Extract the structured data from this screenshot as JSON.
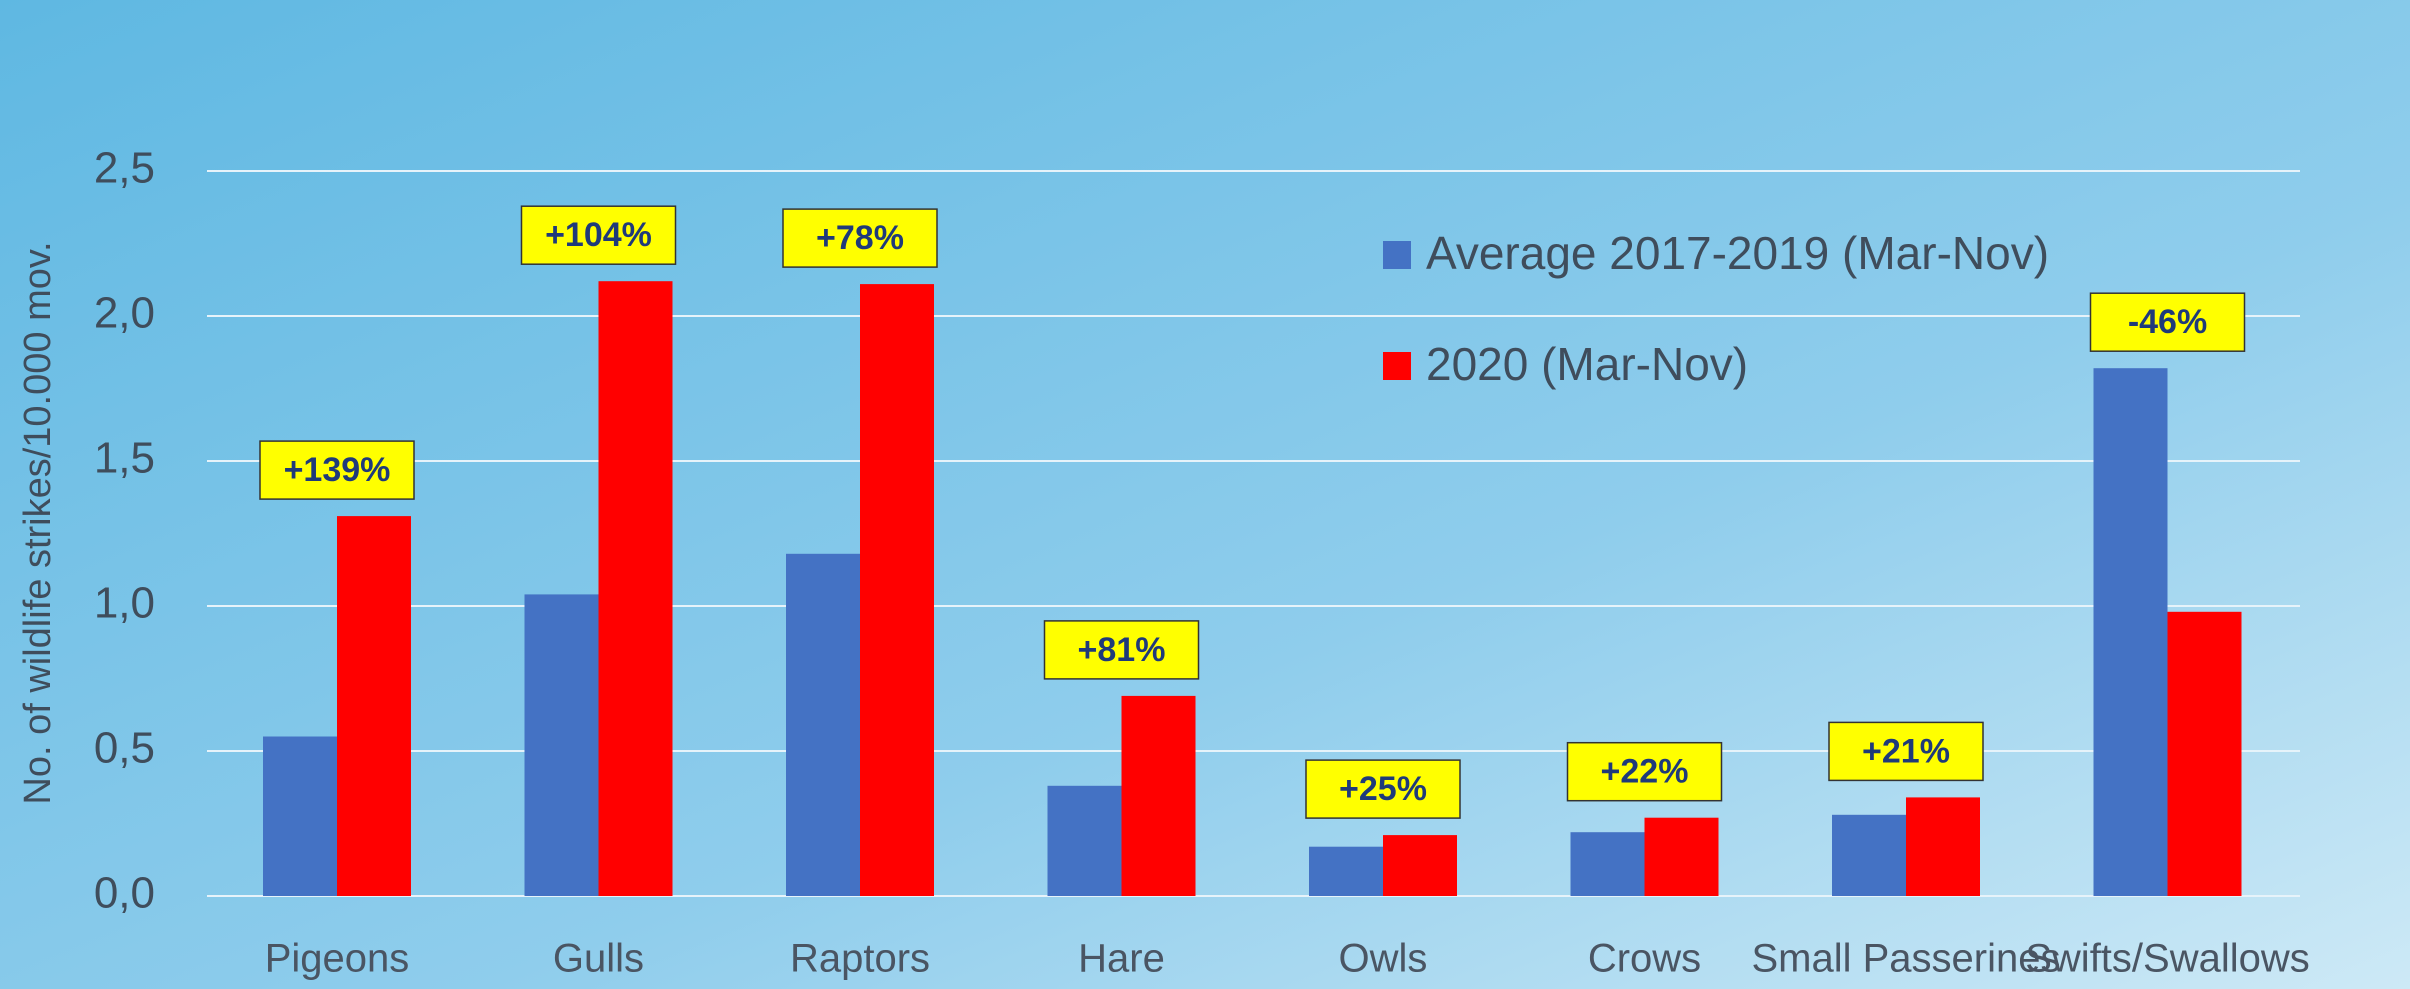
{
  "chart_data": {
    "type": "bar",
    "y_label": "No. of wildlife strikes/10.000 mov.",
    "categories": [
      "Pigeons",
      "Gulls",
      "Raptors",
      "Hare",
      "Owls",
      "Crows",
      "Small Passerines",
      "Swifts/Swallows"
    ],
    "series": [
      {
        "name": "Average 2017-2019 (Mar-Nov)",
        "color": "#4472c4",
        "values": [
          0.55,
          1.04,
          1.18,
          0.38,
          0.17,
          0.22,
          0.28,
          1.82
        ]
      },
      {
        "name": "2020 (Mar-Nov)",
        "color": "#ff0000",
        "values": [
          1.31,
          2.12,
          2.11,
          0.69,
          0.21,
          0.27,
          0.34,
          0.98
        ]
      }
    ],
    "annotations": [
      "+139%",
      "+104%",
      "+78%",
      "+81%",
      "+25%",
      "+22%",
      "+21%",
      "-46%"
    ],
    "ylim": [
      0,
      2.5
    ],
    "yticks": [
      {
        "value": 0,
        "label": "0,0"
      },
      {
        "value": 0.5,
        "label": "0,5"
      },
      {
        "value": 1,
        "label": "1,0"
      },
      {
        "value": 1.5,
        "label": "1,5"
      },
      {
        "value": 2,
        "label": "2,0"
      },
      {
        "value": 2.5,
        "label": "2,5"
      }
    ],
    "grid": true
  }
}
